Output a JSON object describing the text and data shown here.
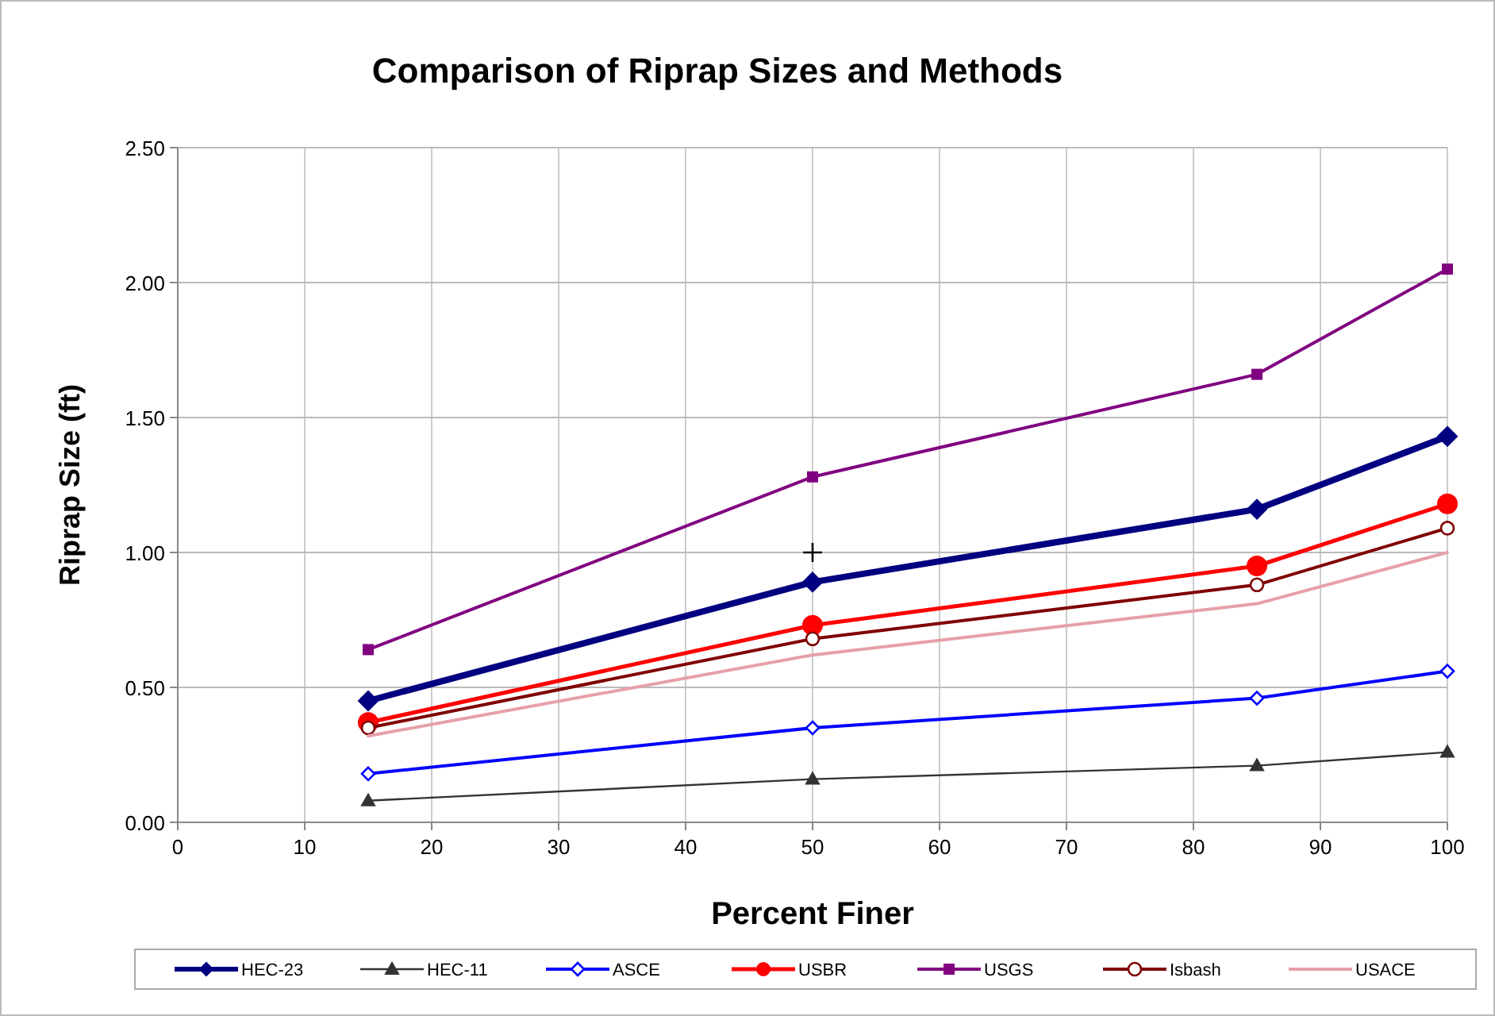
{
  "chart_data": {
    "type": "line",
    "title": "Comparison of Riprap Sizes and Methods",
    "xlabel": "Percent Finer",
    "ylabel": "Riprap Size (ft)",
    "xlim": [
      0,
      100
    ],
    "xticks": [
      0,
      10,
      20,
      30,
      40,
      50,
      60,
      70,
      80,
      90,
      100
    ],
    "ylim": [
      0,
      2.5
    ],
    "yticks": [
      {
        "value": 0,
        "label": "0.00"
      },
      {
        "value": 0.5,
        "label": "0.50"
      },
      {
        "value": 1,
        "label": "1.00"
      },
      {
        "value": 1.5,
        "label": "1.50"
      },
      {
        "value": 2,
        "label": "2.00"
      },
      {
        "value": 2.5,
        "label": "2.50"
      }
    ],
    "grid": true,
    "legend": "bottom",
    "x": [
      15,
      50,
      85,
      100
    ],
    "series": [
      {
        "name": "HEC-23",
        "color": "#000080",
        "marker": "diamond",
        "values": [
          0.45,
          0.89,
          1.16,
          1.43
        ]
      },
      {
        "name": "HEC-11",
        "color": "#333333",
        "marker": "triangle",
        "values": [
          0.08,
          0.16,
          0.21,
          0.26
        ]
      },
      {
        "name": "ASCE",
        "color": "#0000ff",
        "marker": "diamond",
        "values": [
          0.18,
          0.35,
          0.46,
          0.56
        ]
      },
      {
        "name": "USBR",
        "color": "#ff0000",
        "marker": "circle",
        "values": [
          0.37,
          0.73,
          0.95,
          1.18
        ]
      },
      {
        "name": "USGS",
        "color": "#800080",
        "marker": "square",
        "values": [
          0.64,
          1.28,
          1.66,
          2.05
        ]
      },
      {
        "name": "Isbash",
        "color": "#800000",
        "marker": "circle",
        "values": [
          0.35,
          0.68,
          0.88,
          1.09
        ]
      },
      {
        "name": "USACE",
        "color": "#e6a0a8",
        "marker": "none",
        "values": [
          0.32,
          0.62,
          0.81,
          1.0
        ]
      },
      {
        "type": "scatter",
        "color": "#000000",
        "marker": "cross",
        "x": [
          50
        ],
        "values": [
          1.0
        ]
      }
    ]
  }
}
